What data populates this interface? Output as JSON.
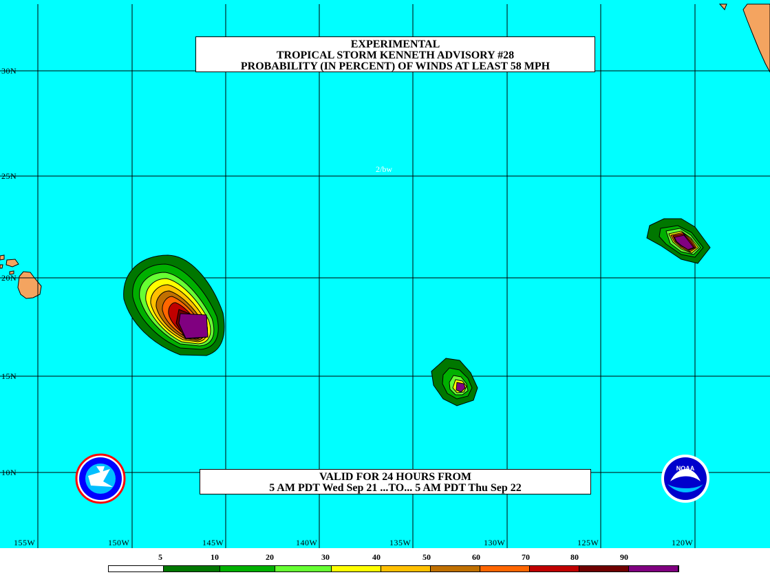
{
  "title": {
    "line1": "EXPERIMENTAL",
    "line2": "TROPICAL STORM KENNETH ADVISORY #28",
    "line3": "PROBABILITY (IN PERCENT) OF WINDS AT LEAST 58 MPH"
  },
  "valid": {
    "line1": "VALID FOR 24 HOURS FROM",
    "line2": "5 AM PDT Wed Sep 21 ...TO... 5 AM PDT Thu Sep 22"
  },
  "credit": "2/bw",
  "latitude_labels": [
    "30N",
    "25N",
    "20N",
    "15N",
    "10N"
  ],
  "longitude_labels": [
    "155W",
    "150W",
    "145W",
    "140W",
    "135W",
    "130W",
    "125W",
    "120W"
  ],
  "legend": {
    "labels": [
      "5",
      "10",
      "20",
      "30",
      "40",
      "50",
      "60",
      "70",
      "80",
      "90"
    ],
    "colors": [
      "#ffffff",
      "#007700",
      "#00b000",
      "#66ff33",
      "#ffff00",
      "#ffc000",
      "#c07000",
      "#ff6600",
      "#c00000",
      "#700000",
      "#800080"
    ]
  },
  "colors": {
    "ocean": "#00ffff",
    "land": "#f4a460",
    "grid": "#000000"
  },
  "logos": {
    "left": "nws-logo",
    "right": "noaa-logo"
  }
}
